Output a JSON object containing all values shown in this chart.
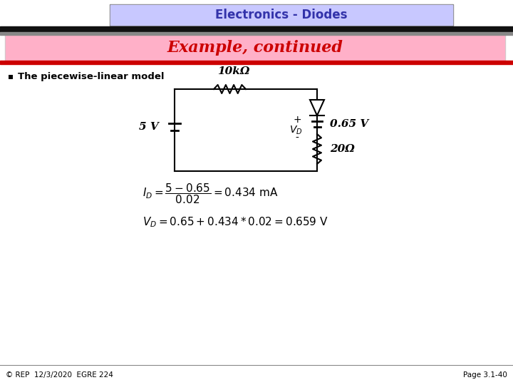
{
  "title": "Electronics - Diodes",
  "title_bg": "#c8c8ff",
  "title_border": "#888888",
  "subtitle": "Example, continued",
  "subtitle_bg": "#ffb0c8",
  "subtitle_color": "#cc0000",
  "bullet_text": "The piecewise-linear model",
  "footer_left": "© REP  12/3/2020  EGRE 224",
  "footer_right": "Page 3.1-40",
  "bg_color": "#ffffff",
  "black_bar_color": "#111111",
  "gray_bar_color": "#888888",
  "red_bar_color": "#cc0000",
  "circuit_label_10k": "10kΩ",
  "circuit_label_5V": "5 V",
  "circuit_label_065V": "0.65 V",
  "circuit_label_20ohm": "20Ω",
  "circuit_label_VD_plus": "+",
  "circuit_label_VD_minus": "-",
  "circuit_label_VD": "$V_D$"
}
